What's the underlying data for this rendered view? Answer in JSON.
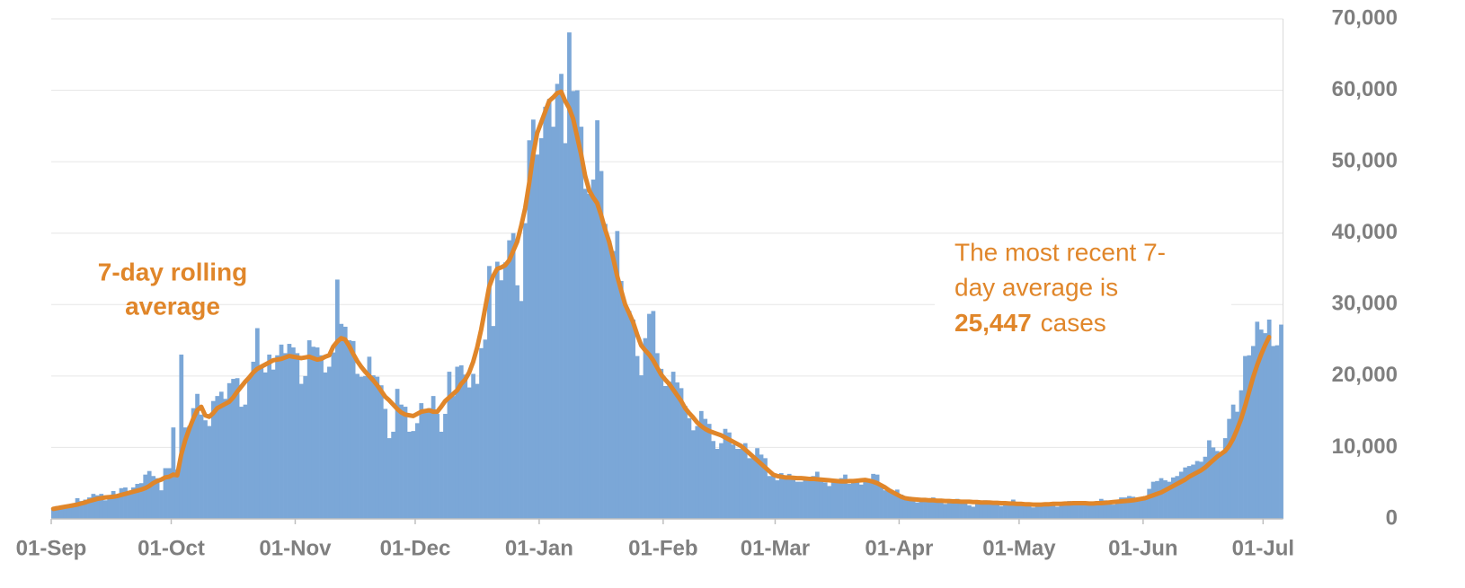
{
  "chart_data": {
    "type": "bar",
    "categories": [
      "01-Sep",
      null,
      null,
      null,
      null,
      null,
      null,
      null,
      null,
      null,
      null,
      null,
      null,
      null,
      null,
      null,
      null,
      null,
      null,
      null,
      null,
      null,
      null,
      null,
      null,
      null,
      null,
      null,
      null,
      null,
      "01-Oct",
      null,
      null,
      null,
      null,
      null,
      null,
      null,
      null,
      null,
      null,
      null,
      null,
      null,
      null,
      null,
      null,
      null,
      null,
      null,
      null,
      null,
      null,
      null,
      null,
      null,
      null,
      null,
      null,
      null,
      null,
      "01-Nov",
      null,
      null,
      null,
      null,
      null,
      null,
      null,
      null,
      null,
      null,
      null,
      null,
      null,
      null,
      null,
      null,
      null,
      null,
      null,
      null,
      null,
      null,
      null,
      null,
      null,
      null,
      null,
      null,
      null,
      "01-Dec",
      null,
      null,
      null,
      null,
      null,
      null,
      null,
      null,
      null,
      null,
      null,
      null,
      null,
      null,
      null,
      null,
      null,
      null,
      null,
      null,
      null,
      null,
      null,
      null,
      null,
      null,
      null,
      null,
      null,
      null,
      "01-Jan",
      null,
      null,
      null,
      null,
      null,
      null,
      null,
      null,
      null,
      null,
      null,
      null,
      null,
      null,
      null,
      null,
      null,
      null,
      null,
      null,
      null,
      null,
      null,
      null,
      null,
      null,
      null,
      null,
      null,
      null,
      "01-Feb",
      null,
      null,
      null,
      null,
      null,
      null,
      null,
      null,
      null,
      null,
      null,
      null,
      null,
      null,
      null,
      null,
      null,
      null,
      null,
      null,
      null,
      null,
      null,
      null,
      null,
      null,
      null,
      "01-Mar",
      null,
      null,
      null,
      null,
      null,
      null,
      null,
      null,
      null,
      null,
      null,
      null,
      null,
      null,
      null,
      null,
      null,
      null,
      null,
      null,
      null,
      null,
      null,
      null,
      null,
      null,
      null,
      null,
      null,
      null,
      "01-Apr",
      null,
      null,
      null,
      null,
      null,
      null,
      null,
      null,
      null,
      null,
      null,
      null,
      null,
      null,
      null,
      null,
      null,
      null,
      null,
      null,
      null,
      null,
      null,
      null,
      null,
      null,
      null,
      null,
      null,
      "01-May",
      null,
      null,
      null,
      null,
      null,
      null,
      null,
      null,
      null,
      null,
      null,
      null,
      null,
      null,
      null,
      null,
      null,
      null,
      null,
      null,
      null,
      null,
      null,
      null,
      null,
      null,
      null,
      null,
      null,
      null,
      "01-Jun",
      null,
      null,
      null,
      null,
      null,
      null,
      null,
      null,
      null,
      null,
      null,
      null,
      null,
      null,
      null,
      null,
      null,
      null,
      null,
      null,
      null,
      null,
      null,
      null,
      null,
      null,
      null,
      null,
      null,
      "01-Jul",
      null,
      null,
      null,
      null
    ],
    "series": [
      {
        "color": "#7ba7d7",
        "values": [
          1300,
          1800,
          1700,
          1900,
          2000,
          1800,
          2900,
          2500,
          2700,
          3000,
          3500,
          3300,
          3500,
          2600,
          3100,
          3900,
          3400,
          4300,
          4400,
          3900,
          4400,
          4900,
          5000,
          6200,
          6700,
          6000,
          5700,
          4000,
          7100,
          7100,
          12800,
          6900,
          23000,
          12800,
          13000,
          15500,
          17500,
          14600,
          13800,
          13000,
          16500,
          17200,
          17800,
          16800,
          19000,
          19600,
          19700,
          15700,
          16000,
          20000,
          22000,
          26700,
          21300,
          20500,
          23000,
          20900,
          22900,
          24400,
          23200,
          24500,
          24000,
          23200,
          18900,
          20000,
          25000,
          24100,
          24000,
          22900,
          20500,
          21300,
          23300,
          33500,
          27300,
          26900,
          25000,
          24900,
          20300,
          19900,
          20000,
          22700,
          20100,
          19900,
          18700,
          15400,
          11300,
          12200,
          18200,
          16000,
          15700,
          12200,
          12300,
          13400,
          16200,
          14900,
          15500,
          17200,
          14700,
          12200,
          14700,
          20600,
          17200,
          21300,
          21500,
          20200,
          18400,
          20300,
          18900,
          23900,
          25100,
          35400,
          27000,
          36000,
          33400,
          35900,
          39000,
          40000,
          32700,
          30500,
          41400,
          53000,
          55900,
          51000,
          53300,
          57700,
          58800,
          54900,
          60900,
          62300,
          52600,
          68100,
          59900,
          60000,
          54900,
          46200,
          45500,
          47500,
          55800,
          48700,
          41300,
          38900,
          37500,
          40300,
          33300,
          30000,
          29100,
          27900,
          22800,
          20100,
          25300,
          28700,
          29100,
          23200,
          21000,
          18600,
          19200,
          20600,
          19100,
          18300,
          15800,
          14100,
          12400,
          13000,
          15100,
          14000,
          13300,
          10900,
          9800,
          10600,
          12600,
          12100,
          10400,
          9800,
          9800,
          10600,
          8500,
          8500,
          9900,
          9000,
          8500,
          6000,
          6000,
          5400,
          6400,
          6000,
          6300,
          6000,
          5200,
          5200,
          5800,
          5900,
          6000,
          6600,
          5500,
          5100,
          4600,
          5100,
          5300,
          5700,
          6200,
          4900,
          5500,
          5300,
          4800,
          5400,
          5600,
          6300,
          6200,
          4700,
          4000,
          3800,
          3900,
          4100,
          3400,
          3100,
          3100,
          2600,
          2300,
          2400,
          2700,
          2900,
          3000,
          2500,
          2400,
          2100,
          2200,
          2600,
          2800,
          2600,
          2700,
          1900,
          1700,
          2600,
          2400,
          2600,
          2400,
          2400,
          2200,
          1800,
          2000,
          2100,
          2700,
          2100,
          2000,
          2100,
          1800,
          1600,
          1900,
          2200,
          2100,
          2200,
          2100,
          1700,
          2000,
          2300,
          2500,
          2100,
          2300,
          2000,
          2100,
          1900,
          2400,
          2500,
          2800,
          2600,
          2300,
          2000,
          2200,
          3000,
          3000,
          3200,
          3100,
          2900,
          2800,
          3200,
          4200,
          5200,
          5300,
          5700,
          5400,
          5200,
          5800,
          6000,
          6600,
          7200,
          7400,
          7600,
          8100,
          8000,
          8700,
          11000,
          10000,
          9500,
          9300,
          11300,
          14000,
          16000,
          15000,
          18000,
          22800,
          22900,
          24200,
          27600,
          26500,
          26000,
          27900,
          24200,
          24300,
          27200
        ]
      },
      {
        "type": "line",
        "color": "#e0862a",
        "values": [
          1400,
          1500,
          1600,
          1700,
          1800,
          1900,
          2000,
          2150,
          2300,
          2500,
          2650,
          2800,
          2900,
          3000,
          3050,
          3100,
          3200,
          3350,
          3500,
          3650,
          3800,
          3950,
          4100,
          4300,
          4600,
          5000,
          5300,
          5500,
          5800,
          5900,
          6200,
          6100,
          9000,
          11000,
          12600,
          14000,
          15200,
          15700,
          14500,
          14300,
          14800,
          15500,
          15800,
          16100,
          16400,
          17000,
          17800,
          18500,
          19200,
          19800,
          20500,
          21000,
          21300,
          21600,
          21900,
          22200,
          22300,
          22400,
          22600,
          22800,
          22700,
          22600,
          22500,
          22600,
          22700,
          22500,
          22300,
          22400,
          22700,
          22900,
          24100,
          24800,
          25300,
          25100,
          24200,
          23100,
          22100,
          21300,
          20600,
          20000,
          19400,
          18700,
          17900,
          17100,
          16600,
          16000,
          15400,
          14900,
          14600,
          14500,
          14400,
          14700,
          15000,
          15100,
          15200,
          15000,
          15000,
          15700,
          16500,
          17000,
          17500,
          18000,
          18900,
          19500,
          20500,
          22000,
          24000,
          26500,
          29500,
          32500,
          34000,
          35000,
          35200,
          35500,
          36200,
          37500,
          38800,
          41000,
          43500,
          47000,
          51000,
          54000,
          55500,
          57000,
          58500,
          59000,
          59600,
          59800,
          58500,
          57500,
          56000,
          53500,
          51000,
          48000,
          46000,
          45000,
          44200,
          42500,
          40500,
          38800,
          36500,
          34000,
          32000,
          30000,
          28800,
          27500,
          25800,
          24300,
          23600,
          23000,
          22200,
          21200,
          20200,
          19500,
          18900,
          18100,
          17300,
          16500,
          15500,
          14800,
          14200,
          13500,
          13000,
          12600,
          12300,
          12100,
          11900,
          11700,
          11400,
          11100,
          10800,
          10500,
          10200,
          9700,
          9200,
          8700,
          8200,
          7700,
          7200,
          6700,
          6200,
          6000,
          5900,
          5800,
          5800,
          5750,
          5700,
          5700,
          5650,
          5600,
          5600,
          5550,
          5500,
          5450,
          5400,
          5350,
          5300,
          5250,
          5250,
          5300,
          5300,
          5350,
          5400,
          5450,
          5350,
          5200,
          5000,
          4700,
          4400,
          4000,
          3700,
          3400,
          3100,
          2900,
          2800,
          2750,
          2700,
          2650,
          2650,
          2600,
          2600,
          2550,
          2550,
          2500,
          2500,
          2450,
          2450,
          2400,
          2400,
          2400,
          2350,
          2350,
          2300,
          2300,
          2300,
          2250,
          2250,
          2200,
          2200,
          2150,
          2150,
          2100,
          2100,
          2050,
          2050,
          2000,
          2000,
          2000,
          2050,
          2050,
          2100,
          2100,
          2100,
          2150,
          2150,
          2200,
          2200,
          2200,
          2200,
          2150,
          2150,
          2200,
          2200,
          2250,
          2300,
          2350,
          2400,
          2450,
          2500,
          2550,
          2600,
          2700,
          2800,
          2900,
          3100,
          3300,
          3500,
          3700,
          4000,
          4300,
          4600,
          4900,
          5200,
          5500,
          5900,
          6200,
          6500,
          6800,
          7200,
          7700,
          8200,
          8700,
          9100,
          9500,
          10200,
          11200,
          12500,
          14000,
          15800,
          17800,
          19800,
          21500,
          23000,
          24300,
          25447,
          null,
          null,
          null
        ]
      }
    ],
    "ylim": [
      0,
      70000
    ],
    "yticks": [
      0,
      {
        "value": 10000,
        "label": "10,000"
      },
      {
        "value": 20000,
        "label": "20,000"
      },
      {
        "value": 30000,
        "label": "30,000"
      },
      {
        "value": 40000,
        "label": "40,000"
      },
      {
        "value": 50000,
        "label": "50,000"
      },
      {
        "value": 60000,
        "label": "60,000"
      },
      {
        "value": 70000,
        "label": "70,000"
      }
    ],
    "grid": true,
    "annotations": [
      {
        "lines": [
          "7-day rolling",
          "average"
        ]
      },
      {
        "lines": [
          "The most recent 7-",
          "day average is"
        ],
        "highlight": "25,447",
        "suffix": "cases"
      }
    ]
  }
}
